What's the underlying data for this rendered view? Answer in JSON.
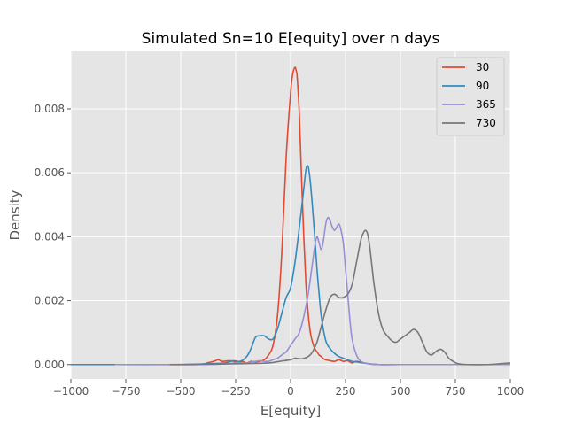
{
  "chart_data": {
    "type": "line",
    "title": "Simulated Sn=10 E[equity] over n days",
    "xlabel": "E[equity]",
    "ylabel": "Density",
    "xlim": [
      -1000,
      1000
    ],
    "ylim": [
      -0.00045,
      0.0098
    ],
    "xticks": [
      -1000,
      -750,
      -500,
      -250,
      0,
      250,
      500,
      750,
      1000
    ],
    "xtick_labels": [
      "−1000",
      "−750",
      "−500",
      "−250",
      "0",
      "250",
      "500",
      "750",
      "1000"
    ],
    "yticks": [
      0,
      0.002,
      0.004,
      0.006,
      0.008
    ],
    "ytick_labels": [
      "0.000",
      "0.002",
      "0.004",
      "0.006",
      "0.008"
    ],
    "grid": true,
    "legend_position": "top-right",
    "series": [
      {
        "name": "30",
        "color": "#E24A33",
        "x": [
          -1000,
          -600,
          -420,
          -380,
          -350,
          -330,
          -310,
          -280,
          -260,
          -240,
          -220,
          -200,
          -180,
          -160,
          -140,
          -120,
          -100,
          -80,
          -60,
          -40,
          -20,
          0,
          10,
          20,
          25,
          30,
          40,
          50,
          60,
          70,
          80,
          90,
          100,
          110,
          120,
          130,
          140,
          150,
          160,
          180,
          200,
          220,
          240,
          260,
          280,
          300,
          350,
          400,
          500,
          1000
        ],
        "y": [
          0,
          0,
          0,
          5e-05,
          0.0001,
          0.00015,
          0.0001,
          0.00012,
          0.0001,
          5e-05,
          0.0001,
          5e-05,
          0.0001,
          8e-05,
          0.0001,
          0.00015,
          0.0003,
          0.0006,
          0.0015,
          0.0035,
          0.0065,
          0.0085,
          0.0091,
          0.0093,
          0.0092,
          0.009,
          0.0078,
          0.0058,
          0.004,
          0.0025,
          0.0016,
          0.001,
          0.0007,
          0.0005,
          0.0004,
          0.0003,
          0.00025,
          0.00018,
          0.00015,
          0.00012,
          0.0001,
          0.00015,
          0.0001,
          0.00012,
          5e-05,
          0.0001,
          3e-05,
          0,
          0,
          0
        ]
      },
      {
        "name": "90",
        "color": "#348ABD",
        "x": [
          -1000,
          -800,
          -500,
          -400,
          -300,
          -260,
          -230,
          -200,
          -180,
          -160,
          -140,
          -120,
          -100,
          -80,
          -60,
          -40,
          -20,
          0,
          20,
          40,
          60,
          70,
          80,
          90,
          100,
          110,
          120,
          130,
          140,
          160,
          180,
          200,
          220,
          240,
          260,
          280,
          300,
          330,
          360,
          400,
          500,
          1000
        ],
        "y": [
          0,
          0,
          0,
          2e-05,
          5e-05,
          0.00012,
          0.0001,
          0.00025,
          0.0005,
          0.00085,
          0.0009,
          0.0009,
          0.0008,
          0.0008,
          0.0011,
          0.0016,
          0.0021,
          0.0024,
          0.0032,
          0.0043,
          0.0055,
          0.0061,
          0.0062,
          0.0057,
          0.0049,
          0.004,
          0.003,
          0.0022,
          0.0015,
          0.00075,
          0.0005,
          0.00035,
          0.00025,
          0.0002,
          0.00015,
          0.0001,
          8e-05,
          5e-05,
          2e-05,
          0,
          0,
          0
        ]
      },
      {
        "name": "365",
        "color": "#988ED5",
        "x": [
          -800,
          -550,
          -400,
          -300,
          -250,
          -200,
          -180,
          -160,
          -140,
          -120,
          -100,
          -80,
          -60,
          -40,
          -20,
          0,
          20,
          40,
          60,
          80,
          100,
          110,
          120,
          130,
          140,
          150,
          160,
          170,
          180,
          190,
          200,
          210,
          220,
          230,
          240,
          250,
          260,
          270,
          280,
          300,
          320,
          350,
          400,
          500,
          1000
        ],
        "y": [
          0,
          0,
          0,
          2e-05,
          5e-05,
          5e-05,
          8e-05,
          0.0001,
          0.00012,
          0.0001,
          0.0001,
          0.00015,
          0.0002,
          0.0003,
          0.0004,
          0.0006,
          0.0008,
          0.001,
          0.0015,
          0.0022,
          0.0032,
          0.0037,
          0.004,
          0.0038,
          0.0036,
          0.0039,
          0.0044,
          0.0046,
          0.0045,
          0.0043,
          0.0042,
          0.0043,
          0.0044,
          0.0042,
          0.0038,
          0.003,
          0.0022,
          0.0014,
          0.0008,
          0.0003,
          0.0001,
          3e-05,
          0,
          0,
          0
        ]
      },
      {
        "name": "730",
        "color": "#777777",
        "x": [
          -550,
          -300,
          -200,
          -100,
          -50,
          0,
          20,
          50,
          80,
          100,
          120,
          140,
          160,
          180,
          200,
          220,
          240,
          260,
          280,
          300,
          320,
          330,
          340,
          350,
          360,
          370,
          380,
          400,
          420,
          440,
          460,
          480,
          500,
          520,
          540,
          560,
          580,
          600,
          620,
          640,
          660,
          680,
          700,
          720,
          740,
          760,
          800,
          900,
          1000
        ],
        "y": [
          0,
          2e-05,
          3e-05,
          5e-05,
          0.0001,
          0.00015,
          0.0002,
          0.00018,
          0.00025,
          0.0004,
          0.0007,
          0.0012,
          0.0017,
          0.0021,
          0.0022,
          0.0021,
          0.0021,
          0.0022,
          0.0025,
          0.0032,
          0.0039,
          0.0041,
          0.0042,
          0.0041,
          0.0037,
          0.0031,
          0.0025,
          0.0016,
          0.0011,
          0.0009,
          0.00075,
          0.0007,
          0.0008,
          0.0009,
          0.001,
          0.0011,
          0.001,
          0.0007,
          0.0004,
          0.0003,
          0.0004,
          0.00048,
          0.0004,
          0.0002,
          0.0001,
          3e-05,
          0,
          0,
          5e-05
        ]
      }
    ]
  }
}
